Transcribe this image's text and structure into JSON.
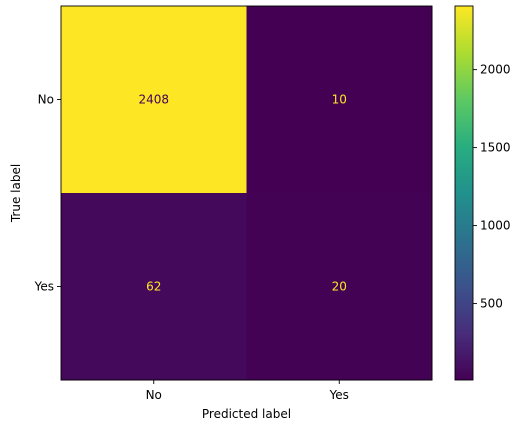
{
  "chart_data": {
    "type": "heatmap",
    "xlabel": "Predicted label",
    "ylabel": "True label",
    "x_categories": [
      "No",
      "Yes"
    ],
    "y_categories": [
      "No",
      "Yes"
    ],
    "matrix": [
      [
        2408,
        10
      ],
      [
        62,
        20
      ]
    ],
    "colormap": "viridis",
    "colorbar": {
      "ticks": [
        500,
        1000,
        1500,
        2000
      ],
      "range": [
        10,
        2408
      ]
    },
    "text_colors": {
      "on_dark": "#fde725",
      "on_light": "#440154"
    },
    "grid": false
  }
}
